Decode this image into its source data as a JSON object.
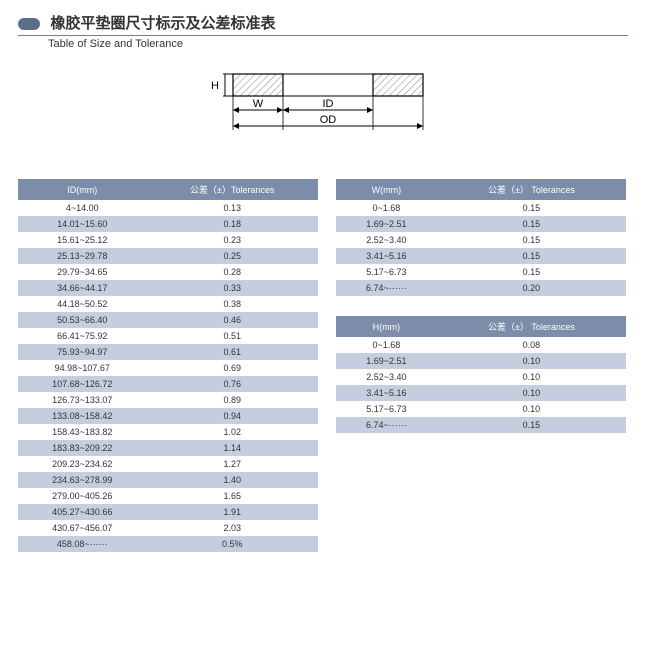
{
  "header": {
    "title_cn": "橡胶平垫圈尺寸标示及公差标准表",
    "title_en": "Table of Size and Tolerance",
    "title_cn_fontsize": 15,
    "title_en_fontsize": 11,
    "title_color": "#333333",
    "rule_color": "#6b7fa0",
    "bullet_color": "#5c6e8a"
  },
  "diagram": {
    "labels": {
      "H": "H",
      "W": "W",
      "ID": "ID",
      "OD": "OD"
    },
    "stroke": "#000000",
    "hatch": "#888888",
    "label_fontsize": 11
  },
  "table_style": {
    "header_bg": "#7d8ca8",
    "header_fg": "#ffffff",
    "row_alt_bg": "#c5cede",
    "row_bg": "#ffffff",
    "text_color": "#333333",
    "border_color": "#ffffff"
  },
  "id_table": {
    "col1_header": "ID(mm)",
    "col2_header": "公差（±）Tolerances",
    "rows": [
      [
        "4~14.00",
        "0.13"
      ],
      [
        "14.01~15.60",
        "0.18"
      ],
      [
        "15.61~25.12",
        "0.23"
      ],
      [
        "25.13~29.78",
        "0.25"
      ],
      [
        "29.79~34.65",
        "0.28"
      ],
      [
        "34.66~44.17",
        "0.33"
      ],
      [
        "44.18~50.52",
        "0.38"
      ],
      [
        "50.53~66.40",
        "0.46"
      ],
      [
        "66.41~75.92",
        "0.51"
      ],
      [
        "75.93~94.97",
        "0.61"
      ],
      [
        "94.98~107.67",
        "0.69"
      ],
      [
        "107.68~126.72",
        "0.76"
      ],
      [
        "126.73~133.07",
        "0.89"
      ],
      [
        "133.08~158.42",
        "0.94"
      ],
      [
        "158.43~183.82",
        "1.02"
      ],
      [
        "183.83~209.22",
        "1.14"
      ],
      [
        "209.23~234.62",
        "1.27"
      ],
      [
        "234.63~278.99",
        "1.40"
      ],
      [
        "279.00~405.26",
        "1.65"
      ],
      [
        "405.27~430.66",
        "1.91"
      ],
      [
        "430.67~456.07",
        "2.03"
      ],
      [
        "458.08~······",
        "0.5%"
      ]
    ]
  },
  "w_table": {
    "col1_header": "W(mm)",
    "col2_header": "公差（±） Tolerances",
    "rows": [
      [
        "0~1.68",
        "0.15"
      ],
      [
        "1.69~2.51",
        "0.15"
      ],
      [
        "2.52~3.40",
        "0.15"
      ],
      [
        "3.41~5.16",
        "0.15"
      ],
      [
        "5.17~6.73",
        "0.15"
      ],
      [
        "6.74~······",
        "0.20"
      ]
    ]
  },
  "h_table": {
    "col1_header": "H(mm)",
    "col2_header": "公差（±） Tolerances",
    "rows": [
      [
        "0~1.68",
        "0.08"
      ],
      [
        "1.69~2.51",
        "0.10"
      ],
      [
        "2.52~3.40",
        "0.10"
      ],
      [
        "3.41~5.16",
        "0.10"
      ],
      [
        "5.17~6.73",
        "0.10"
      ],
      [
        "6.74~······",
        "0.15"
      ]
    ]
  }
}
